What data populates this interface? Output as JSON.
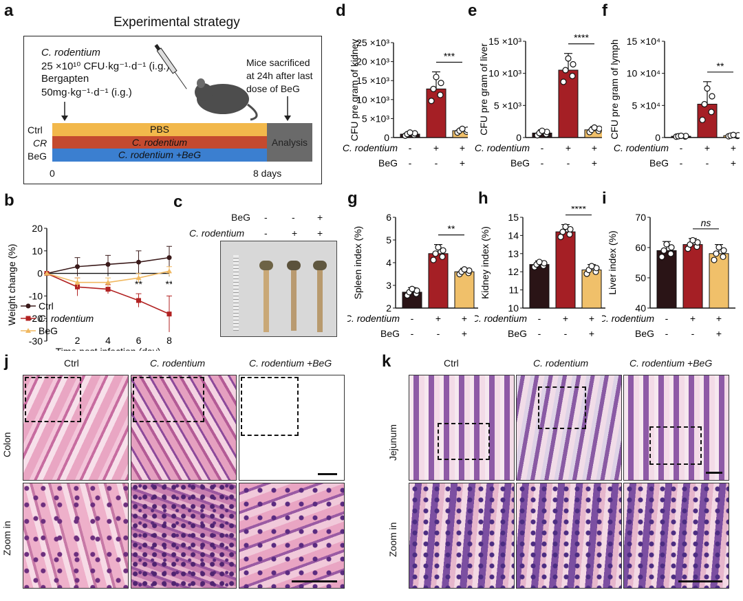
{
  "panels": {
    "a": "a",
    "b": "b",
    "c": "c",
    "d": "d",
    "e": "e",
    "f": "f",
    "g": "g",
    "h": "h",
    "i": "i",
    "j": "j",
    "k": "k"
  },
  "a": {
    "title": "Experimental strategy",
    "cr_name": "C. rodentium",
    "cr_dose": "25 ×10¹⁰ CFU·kg⁻¹·d⁻¹ (i.g.)",
    "beg_name": "Bergapten",
    "beg_dose": "50mg·kg⁻¹·d⁻¹ (i.g.)",
    "sacrifice": "Mice sacrificed at 24h after last dose of BeG",
    "groups": [
      "Ctrl",
      "CR",
      "BeG"
    ],
    "bars": [
      "PBS",
      "C. rodentium",
      "C. rodentium +BeG"
    ],
    "analysis": "Analysis",
    "t0": "0",
    "t8": "8 days",
    "colors": {
      "pbs": "#f2b84b",
      "cr": "#c44a2f",
      "beg": "#3b7fd0",
      "analysis": "#6a6a6a"
    }
  },
  "b": {
    "ylabel": "Weight change (%)",
    "xlabel": "Time post infection (day)",
    "legend": [
      "Ctrl",
      "C. rodentium",
      "BeG"
    ],
    "stars6": "**",
    "stars8": "**"
  },
  "c": {
    "beg_row": "BeG",
    "cr_row": "C. rodentium",
    "beg": [
      "-",
      "-",
      "+"
    ],
    "cr": [
      "-",
      "+",
      "+"
    ]
  },
  "small": {
    "cr_label": "C. rodentium",
    "beg_label": "BeG",
    "cr_signs": [
      "-",
      "+",
      "+"
    ],
    "beg_signs": [
      "-",
      "-",
      "+"
    ]
  },
  "chart_data": [
    {
      "panel": "b",
      "type": "line",
      "x": [
        0,
        2,
        4,
        6,
        8
      ],
      "xlim": [
        0,
        8
      ],
      "ylim": [
        -30,
        20
      ],
      "yticks": [
        20,
        10,
        0,
        -10,
        -20,
        -30
      ],
      "xticks": [
        2,
        4,
        6,
        8
      ],
      "series": [
        {
          "name": "Ctrl",
          "values": [
            0,
            3,
            4,
            5,
            7
          ],
          "err": [
            0,
            4,
            4,
            5,
            5
          ],
          "color": "#3a1a1a"
        },
        {
          "name": "C. rodentium",
          "values": [
            0,
            -6,
            -7,
            -12,
            -18
          ],
          "err": [
            0,
            4,
            2,
            3,
            8
          ],
          "color": "#b22222"
        },
        {
          "name": "BeG",
          "values": [
            0,
            -4,
            -4,
            -2,
            1
          ],
          "err": [
            0,
            2,
            2,
            2,
            2
          ],
          "color": "#f0b860"
        }
      ]
    },
    {
      "panel": "d",
      "type": "bar",
      "ylabel": "CFU pre gram of kidney",
      "ylim": [
        0,
        25000
      ],
      "yticks": [
        "0",
        "5 ×10³",
        "10 ×10³",
        "15 ×10³",
        "20 ×10³",
        "25 ×10³"
      ],
      "values": [
        900,
        12800,
        1800
      ],
      "err": [
        600,
        4500,
        700
      ],
      "sig": "***"
    },
    {
      "panel": "e",
      "type": "bar",
      "ylabel": "CFU pre gram of liver",
      "ylim": [
        0,
        15000
      ],
      "yticks": [
        "0",
        "5 ×10³",
        "10 ×10³",
        "15 ×10³"
      ],
      "values": [
        700,
        10500,
        1200
      ],
      "err": [
        500,
        2600,
        500
      ],
      "sig": "****"
    },
    {
      "panel": "f",
      "type": "bar",
      "ylabel": "CFU pre gram of lymph",
      "ylim": [
        0,
        150000
      ],
      "yticks": [
        "0",
        "5 ×10⁴",
        "10 ×10⁴",
        "15 ×10⁴"
      ],
      "values": [
        2000,
        52000,
        3000
      ],
      "err": [
        1000,
        35000,
        1500
      ],
      "sig": "**"
    },
    {
      "panel": "g",
      "type": "bar",
      "ylabel": "Spleen index (%)",
      "ylim": [
        2,
        6
      ],
      "yticks": [
        "2",
        "3",
        "4",
        "5",
        "6"
      ],
      "values": [
        2.7,
        4.4,
        3.6
      ],
      "err": [
        0.2,
        0.4,
        0.15
      ],
      "sig": "**"
    },
    {
      "panel": "h",
      "type": "bar",
      "ylabel": "Kidney index (%)",
      "ylim": [
        10,
        15
      ],
      "yticks": [
        "10",
        "11",
        "12",
        "13",
        "14",
        "15"
      ],
      "values": [
        12.4,
        14.2,
        12.1
      ],
      "err": [
        0.2,
        0.4,
        0.3
      ],
      "sig": "****"
    },
    {
      "panel": "i",
      "type": "bar",
      "ylabel": "Liver index (%)",
      "ylim": [
        40,
        70
      ],
      "yticks": [
        "40",
        "50",
        "60",
        "70"
      ],
      "values": [
        59,
        61,
        58
      ],
      "err": [
        3,
        2,
        3
      ],
      "sig": "ns"
    }
  ],
  "j": {
    "cols": [
      "Ctrl",
      "C. rodentium",
      "C. rodentium +BeG"
    ],
    "row1": "Colon",
    "row2": "Zoom in"
  },
  "k": {
    "cols": [
      "Ctrl",
      "C. rodentium",
      "C. rodentium +BeG"
    ],
    "row1": "Jejunum",
    "row2": "Zoom in"
  }
}
